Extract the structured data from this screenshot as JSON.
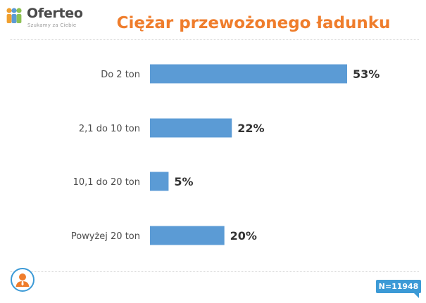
{
  "logo": {
    "name": "Oferteo",
    "tagline": "Szukamy za Ciebie"
  },
  "footer": {
    "sample_size": "N=11948"
  },
  "colors": {
    "title": "#ef7d2c",
    "bar": "#5b9bd5",
    "badge": "#3c9ad6"
  },
  "chart_data": {
    "type": "bar",
    "orientation": "horizontal",
    "title": "Ciężar przewożonego ładunku",
    "categories": [
      "Do 2 ton",
      "2,1 do 10 ton",
      "10,1 do 20 ton",
      "Powyżej 20 ton"
    ],
    "values": [
      53,
      22,
      5,
      20
    ],
    "value_labels": [
      "53%",
      "22%",
      "5%",
      "20%"
    ],
    "unit": "%",
    "xlim": [
      0,
      53
    ],
    "grid": false,
    "legend": "none"
  }
}
